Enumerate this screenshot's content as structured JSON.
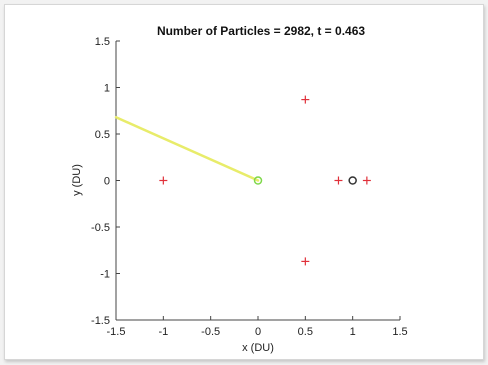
{
  "chart_data": {
    "type": "scatter",
    "title": "Number of Particles = 2982, t = 0.463",
    "xlabel": "x (DU)",
    "ylabel": "y (DU)",
    "xlim": [
      -1.5,
      1.5
    ],
    "ylim": [
      -1.5,
      1.5
    ],
    "xticks": [
      "-1.5",
      "-1",
      "-0.5",
      "0",
      "0.5",
      "1",
      "1.5"
    ],
    "yticks": [
      "-1.5",
      "-1",
      "-0.5",
      "0",
      "0.5",
      "1",
      "1.5"
    ],
    "grid": false,
    "series": [
      {
        "marker": "plus",
        "color": "#e0303a",
        "x": [
          -1.0,
          0.5,
          0.5,
          0.85,
          1.15
        ],
        "y": [
          0.0,
          0.87,
          -0.87,
          0.0,
          0.0
        ]
      },
      {
        "marker": "circle",
        "color": "#333333",
        "x": [
          1.0
        ],
        "y": [
          0.0
        ]
      },
      {
        "marker": "circle",
        "color": "#7ed84a",
        "x": [
          0.0
        ],
        "y": [
          0.0
        ]
      }
    ],
    "trail": {
      "color": "#e8ec6a",
      "x": [
        -1.5,
        0.0
      ],
      "y": [
        0.68,
        0.0
      ]
    }
  }
}
